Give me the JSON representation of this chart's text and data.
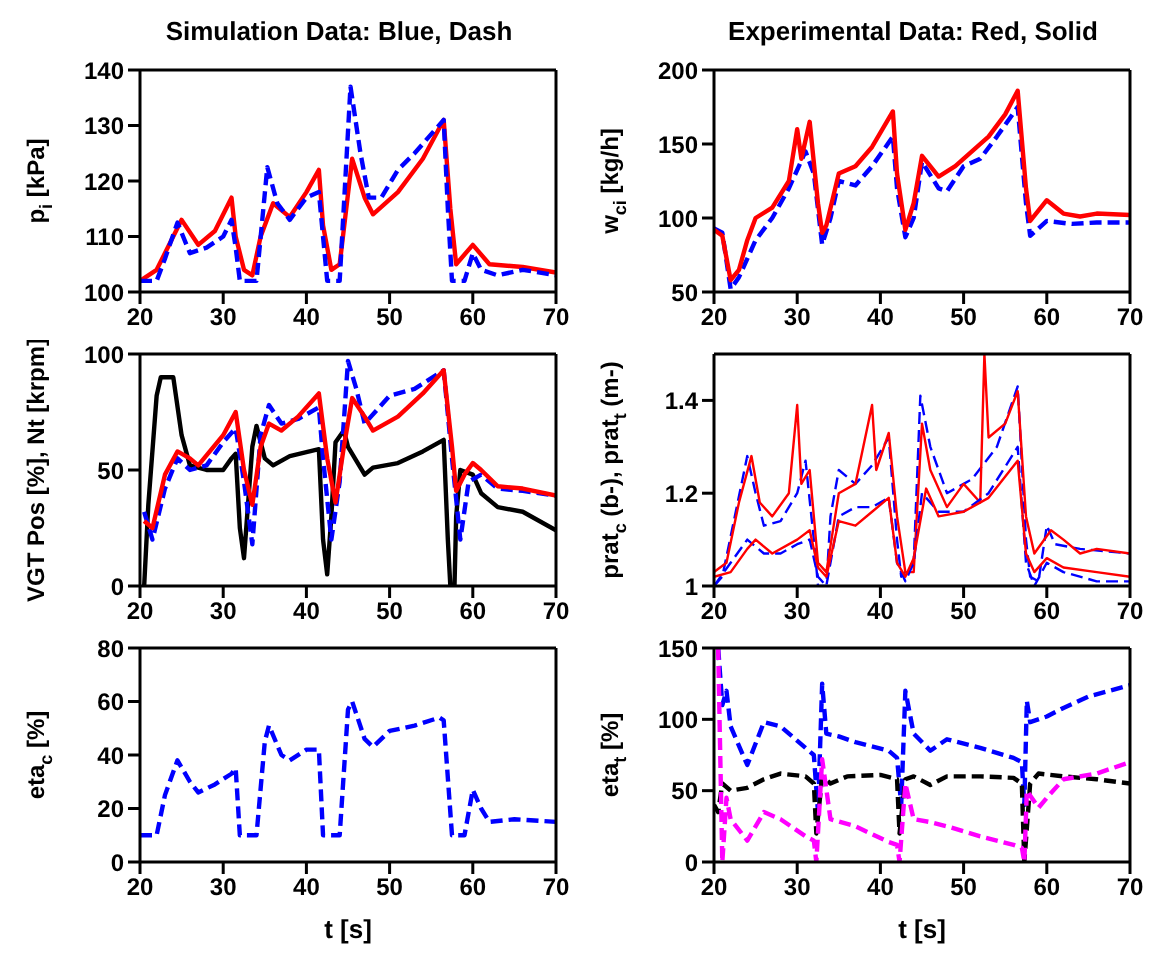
{
  "chart_data": [
    {
      "type": "line",
      "title": "Simulation Data: Blue, Dash",
      "ylabel": "p$_{i}$ [kPa]",
      "xlim": [
        20,
        70
      ],
      "xticks": [
        20,
        30,
        40,
        50,
        60,
        70
      ],
      "ylim": [
        100,
        140
      ],
      "yticks": [
        100,
        110,
        120,
        130,
        140
      ],
      "series": [
        {
          "color": "#ff0000",
          "line_style": "solid",
          "x": [
            20,
            22,
            25,
            27,
            29,
            31,
            31.5,
            32.5,
            33.5,
            34.5,
            36,
            38,
            40,
            41.5,
            42,
            43,
            44,
            45.5,
            47,
            48,
            51,
            54,
            56.5,
            57.3,
            58,
            60,
            62,
            66,
            70
          ],
          "values": [
            102,
            104,
            113,
            108.5,
            111,
            117,
            110,
            104,
            103,
            110,
            116,
            113.5,
            118,
            122,
            112,
            104,
            105,
            124,
            117,
            114,
            118,
            124,
            131,
            115,
            105,
            108.5,
            105,
            104.5,
            103.5
          ]
        },
        {
          "color": "#0000ff",
          "line_style": "dashed",
          "x": [
            20,
            22,
            23,
            24.5,
            26,
            28,
            30,
            31,
            31.5,
            32,
            34,
            35.3,
            36.5,
            38,
            40,
            41.5,
            42,
            42.5,
            44,
            45.3,
            46.5,
            47.5,
            49,
            51,
            53,
            56.5,
            57,
            57.5,
            59,
            60,
            61,
            63,
            66,
            70
          ],
          "values": [
            102,
            102,
            106,
            112.5,
            107,
            108,
            110,
            113,
            108,
            102,
            102,
            122.5,
            116,
            113,
            117,
            118,
            110,
            102,
            102,
            137,
            125,
            117,
            117,
            122,
            125,
            131,
            115,
            102,
            102,
            107,
            104,
            103,
            104,
            103
          ]
        }
      ]
    },
    {
      "type": "line",
      "title": "Experimental Data: Red, Solid",
      "ylabel": "w$_{ci}$ [kg/h]",
      "xlim": [
        20,
        70
      ],
      "xticks": [
        20,
        30,
        40,
        50,
        60,
        70
      ],
      "ylim": [
        50,
        200
      ],
      "yticks": [
        50,
        100,
        150,
        200
      ],
      "series": [
        {
          "color": "#0000ff",
          "line_style": "dashed",
          "x": [
            20,
            21,
            22,
            23,
            25,
            27,
            29,
            31,
            32,
            33,
            34,
            35,
            37,
            39,
            41.5,
            42,
            43,
            44,
            45,
            47,
            48,
            50,
            52,
            54,
            56.5,
            57.5,
            58,
            60,
            63,
            66,
            70
          ],
          "values": [
            93,
            90,
            52,
            60,
            85,
            100,
            120,
            145,
            130,
            82,
            100,
            125,
            122,
            135,
            155,
            120,
            87,
            100,
            138,
            120,
            118,
            135,
            140,
            155,
            175,
            110,
            88,
            98,
            96,
            97,
            97
          ]
        },
        {
          "color": "#ff0000",
          "line_style": "solid",
          "x": [
            20,
            21,
            22,
            23,
            24,
            25,
            27,
            29,
            30,
            30.5,
            31.5,
            32.5,
            33,
            33.5,
            35,
            37,
            39,
            41.5,
            42,
            43,
            44,
            45,
            47,
            49,
            51,
            53,
            55,
            56.5,
            57.5,
            58,
            60,
            62,
            64,
            66,
            70
          ],
          "values": [
            92,
            88,
            58,
            65,
            85,
            100,
            107,
            125,
            160,
            140,
            165,
            110,
            90,
            95,
            130,
            135,
            148,
            172,
            130,
            92,
            110,
            142,
            128,
            135,
            145,
            155,
            170,
            186,
            120,
            98,
            112,
            103,
            101,
            103,
            102
          ]
        }
      ]
    },
    {
      "type": "line",
      "ylabel": "VGT Pos [%], Nt [krpm]",
      "xlim": [
        20,
        70
      ],
      "xticks": [
        20,
        30,
        40,
        50,
        60,
        70
      ],
      "ylim": [
        0,
        100
      ],
      "yticks": [
        0,
        50,
        100
      ],
      "series": [
        {
          "color": "#000000",
          "line_style": "solid",
          "x": [
            20.5,
            21,
            22,
            22.5,
            24,
            25,
            26,
            28,
            30,
            31,
            31.5,
            32,
            32.5,
            33.5,
            34,
            35,
            36,
            38,
            41.5,
            42,
            42.5,
            43,
            43.5,
            44.5,
            45,
            47,
            48,
            51,
            54,
            56.5,
            57,
            57.3,
            57.8,
            58,
            58.5,
            60,
            61,
            63,
            66,
            70
          ],
          "values": [
            0,
            35,
            82,
            90,
            90,
            65,
            52,
            50,
            50,
            55,
            57,
            25,
            12,
            60,
            69,
            55,
            52,
            56,
            59,
            20,
            5,
            30,
            62,
            67,
            60,
            48,
            51,
            53,
            58,
            63,
            20,
            0,
            0,
            30,
            50,
            48,
            40,
            34,
            32,
            24
          ]
        },
        {
          "color": "#0000ff",
          "line_style": "dashed",
          "x": [
            20.5,
            21.5,
            23,
            24.5,
            26,
            28,
            30,
            31.5,
            32.5,
            33.5,
            34.5,
            35.5,
            37,
            39,
            41.5,
            42,
            43,
            44,
            45,
            46,
            47,
            50,
            53,
            56.5,
            57.5,
            58.5,
            59.5,
            61,
            63,
            66,
            70
          ],
          "values": [
            32,
            20,
            42,
            55,
            50,
            52,
            62,
            68,
            45,
            18,
            65,
            78,
            70,
            72,
            77,
            55,
            20,
            45,
            97,
            85,
            70,
            82,
            85,
            93,
            55,
            20,
            45,
            48,
            42,
            41,
            39
          ]
        },
        {
          "color": "#ff0000",
          "line_style": "solid",
          "x": [
            20.5,
            21.5,
            23,
            24.5,
            26,
            27,
            30,
            31.5,
            32.5,
            33.5,
            34.5,
            35.5,
            37,
            39,
            41.5,
            42.5,
            43.5,
            44.5,
            45.5,
            47,
            48,
            51,
            54,
            56.5,
            57.5,
            58,
            59,
            60,
            61,
            63,
            66,
            70
          ],
          "values": [
            28,
            25,
            48,
            58,
            55,
            52,
            65,
            75,
            50,
            35,
            60,
            70,
            67,
            73,
            83,
            55,
            36,
            60,
            81,
            73,
            67,
            73,
            83,
            93,
            60,
            41,
            48,
            53,
            50,
            43,
            42,
            39
          ]
        }
      ]
    },
    {
      "type": "line",
      "ylabel": "prat$_{c}$ (b-), prat$_{t}$ (m-)",
      "xlim": [
        20,
        70
      ],
      "xticks": [
        20,
        30,
        40,
        50,
        60,
        70
      ],
      "ylim": [
        1,
        1.5
      ],
      "yticks": [
        1,
        1.2,
        1.4
      ],
      "series": [
        {
          "color": "#0000ff",
          "line_style": "dashed",
          "x": [
            20,
            21,
            22.5,
            24,
            25,
            26,
            28,
            30,
            31,
            32,
            32.5,
            33.5,
            34,
            35,
            37,
            39,
            41,
            42,
            42.5,
            44,
            44.8,
            46,
            48,
            51,
            54,
            56.5,
            57.5,
            58,
            59,
            60,
            61,
            64,
            70
          ],
          "values": [
            1.0,
            1.02,
            1.15,
            1.28,
            1.2,
            1.13,
            1.14,
            1.2,
            1.27,
            1.1,
            1.0,
            1.0,
            1.15,
            1.25,
            1.22,
            1.26,
            1.32,
            1.1,
            1.02,
            1.05,
            1.41,
            1.3,
            1.2,
            1.23,
            1.3,
            1.43,
            1.1,
            1.02,
            1.01,
            1.13,
            1.09,
            1.08,
            1.07
          ]
        },
        {
          "color": "#ff0000",
          "line_style": "solid",
          "x": [
            20,
            21.5,
            23,
            24.5,
            25.5,
            27,
            29,
            30,
            30.5,
            31.5,
            32.5,
            33.5,
            35,
            37,
            39,
            39.5,
            41,
            42,
            43,
            44,
            45,
            46,
            48,
            50,
            52,
            52.5,
            53,
            55,
            56.5,
            57.5,
            58.5,
            60.5,
            62,
            64,
            66,
            70
          ],
          "values": [
            1.03,
            1.05,
            1.18,
            1.28,
            1.18,
            1.15,
            1.2,
            1.39,
            1.22,
            1.25,
            1.05,
            1.03,
            1.2,
            1.22,
            1.39,
            1.25,
            1.33,
            1.15,
            1.03,
            1.03,
            1.35,
            1.25,
            1.17,
            1.22,
            1.18,
            1.5,
            1.32,
            1.35,
            1.42,
            1.15,
            1.07,
            1.12,
            1.1,
            1.07,
            1.08,
            1.07
          ]
        },
        {
          "color": "#0000ff",
          "line_style": "dashed",
          "x": [
            20,
            22,
            24,
            26,
            28,
            30,
            31.5,
            32.5,
            33.5,
            35,
            37,
            39,
            41,
            42,
            43,
            44,
            45,
            47,
            50,
            53,
            56.5,
            57.5,
            58.5,
            60,
            62,
            66,
            70
          ],
          "values": [
            1.0,
            1.05,
            1.1,
            1.07,
            1.07,
            1.09,
            1.1,
            1.02,
            1.0,
            1.15,
            1.17,
            1.17,
            1.19,
            1.05,
            1.01,
            1.05,
            1.2,
            1.16,
            1.16,
            1.2,
            1.3,
            1.05,
            1.0,
            1.05,
            1.03,
            1.01,
            1.01
          ]
        },
        {
          "color": "#ff0000",
          "line_style": "solid",
          "x": [
            20,
            22,
            24,
            25,
            27,
            30,
            31.5,
            32.5,
            33.5,
            35,
            37,
            39,
            41,
            42,
            43,
            44,
            45.5,
            47,
            50,
            53,
            56.5,
            57.5,
            58.5,
            60,
            62,
            66,
            70
          ],
          "values": [
            1.02,
            1.03,
            1.08,
            1.1,
            1.07,
            1.1,
            1.12,
            1.04,
            1.02,
            1.14,
            1.13,
            1.16,
            1.19,
            1.05,
            1.02,
            1.06,
            1.21,
            1.15,
            1.16,
            1.19,
            1.27,
            1.07,
            1.03,
            1.06,
            1.04,
            1.03,
            1.02
          ]
        }
      ]
    },
    {
      "type": "line",
      "ylabel": "eta$_{c}$ [%]",
      "xlabel": "t [s]",
      "xlim": [
        20,
        70
      ],
      "xticks": [
        20,
        30,
        40,
        50,
        60,
        70
      ],
      "ylim": [
        0,
        80
      ],
      "yticks": [
        0,
        20,
        40,
        60,
        80
      ],
      "series": [
        {
          "color": "#0000ff",
          "line_style": "dashed",
          "x": [
            20,
            22,
            23,
            24.5,
            26,
            27,
            29,
            31,
            31.5,
            32,
            34,
            35,
            35.5,
            37,
            38,
            40,
            41.5,
            42,
            44,
            45,
            45.5,
            47,
            48,
            50,
            53,
            56,
            56.5,
            57.5,
            59,
            60,
            61,
            62,
            65,
            70
          ],
          "values": [
            10,
            10,
            25,
            38,
            30,
            26,
            29,
            33,
            35,
            10,
            10,
            45,
            51,
            40,
            38,
            42,
            42,
            10,
            10,
            57,
            60,
            46,
            43,
            49,
            51,
            54,
            53,
            10,
            10,
            27,
            20,
            15,
            16,
            15
          ]
        }
      ]
    },
    {
      "type": "line",
      "ylabel": "eta$_{t}$ [%]",
      "xlabel": "t [s]",
      "xlim": [
        20,
        70
      ],
      "xticks": [
        20,
        30,
        40,
        50,
        60,
        70
      ],
      "ylim": [
        0,
        150
      ],
      "yticks": [
        0,
        50,
        100,
        150
      ],
      "series": [
        {
          "color": "#0000ff",
          "line_style": "dashed",
          "x": [
            20.5,
            21,
            21.5,
            22,
            24,
            26,
            28,
            31,
            32,
            32.5,
            33,
            33.5,
            35,
            37,
            41,
            42,
            42.5,
            43,
            44,
            46,
            48,
            52,
            56,
            57,
            57.3,
            57.6,
            58,
            60,
            62,
            65,
            70
          ],
          "values": [
            150,
            110,
            120,
            95,
            68,
            98,
            95,
            80,
            75,
            35,
            125,
            90,
            88,
            84,
            78,
            73,
            40,
            120,
            90,
            78,
            86,
            80,
            73,
            70,
            40,
            113,
            98,
            102,
            108,
            116,
            124
          ]
        },
        {
          "color": "#000000",
          "line_style": "dashed",
          "x": [
            20,
            20.5,
            21,
            22,
            24,
            26,
            28,
            31,
            32,
            32.3,
            33,
            34,
            36,
            40,
            42,
            42.3,
            43,
            44,
            46,
            48,
            52,
            56,
            57,
            57.3,
            58,
            59,
            62,
            66,
            70
          ],
          "values": [
            40,
            35,
            55,
            50,
            52,
            58,
            62,
            60,
            55,
            20,
            60,
            55,
            60,
            61,
            58,
            20,
            58,
            60,
            54,
            60,
            60,
            59,
            55,
            0,
            55,
            62,
            60,
            58,
            55
          ]
        },
        {
          "color": "#ff00ff",
          "line_style": "dashed",
          "x": [
            20.5,
            21,
            21.5,
            22,
            24,
            26,
            28,
            31,
            32,
            32.3,
            33,
            34,
            37,
            41,
            42,
            42.3,
            43,
            44,
            46,
            48,
            52,
            56,
            57,
            57.3,
            57.6,
            59,
            60,
            62,
            66,
            70
          ],
          "values": [
            150,
            0,
            45,
            30,
            15,
            35,
            30,
            18,
            15,
            0,
            72,
            30,
            25,
            14,
            12,
            0,
            55,
            30,
            28,
            25,
            18,
            12,
            10,
            0,
            50,
            38,
            45,
            58,
            62,
            70
          ]
        }
      ]
    }
  ]
}
